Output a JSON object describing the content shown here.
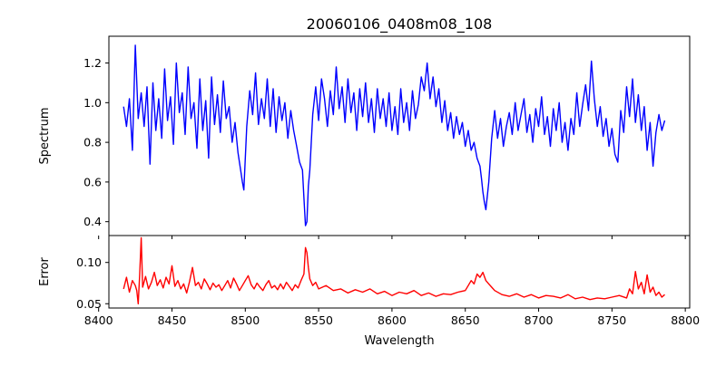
{
  "chart_data": [
    {
      "type": "line",
      "title": "20060106_0408m08_108",
      "xlabel": "",
      "ylabel": "Spectrum",
      "xlim": [
        8407,
        8803
      ],
      "ylim": [
        0.33,
        1.335
      ],
      "xticks": [
        8400,
        8450,
        8500,
        8550,
        8600,
        8650,
        8700,
        8750,
        8800
      ],
      "yticks": [
        0.4,
        0.6,
        0.8,
        1.0,
        1.2
      ],
      "ytick_labels": [
        "0.4",
        "0.6",
        "0.8",
        "1.0",
        "1.2"
      ],
      "grid": false,
      "series": [
        {
          "color": "#0000ff",
          "x": [
            8417,
            8419,
            8421,
            8423,
            8425,
            8427,
            8429,
            8431,
            8433,
            8435,
            8437,
            8439,
            8441,
            8443,
            8445,
            8447,
            8449,
            8451,
            8453,
            8455,
            8457,
            8459,
            8461,
            8463,
            8465,
            8467,
            8469,
            8471,
            8473,
            8475,
            8477,
            8479,
            8481,
            8483,
            8485,
            8487,
            8489,
            8491,
            8493,
            8495,
            8497,
            8498,
            8499,
            8501,
            8503,
            8505,
            8507,
            8509,
            8511,
            8513,
            8515,
            8517,
            8519,
            8521,
            8523,
            8525,
            8527,
            8529,
            8531,
            8533,
            8535,
            8537,
            8539,
            8540,
            8541,
            8542,
            8543,
            8544,
            8546,
            8548,
            8550,
            8552,
            8554,
            8556,
            8558,
            8560,
            8562,
            8564,
            8566,
            8568,
            8570,
            8572,
            8574,
            8576,
            8578,
            8580,
            8582,
            8584,
            8586,
            8588,
            8590,
            8592,
            8594,
            8596,
            8598,
            8600,
            8602,
            8604,
            8606,
            8608,
            8610,
            8612,
            8614,
            8616,
            8618,
            8620,
            8622,
            8624,
            8626,
            8628,
            8630,
            8632,
            8634,
            8636,
            8638,
            8640,
            8642,
            8644,
            8646,
            8648,
            8650,
            8652,
            8654,
            8656,
            8658,
            8660,
            8661,
            8662,
            8663,
            8664,
            8666,
            8668,
            8670,
            8672,
            8674,
            8676,
            8678,
            8680,
            8682,
            8684,
            8686,
            8688,
            8690,
            8692,
            8694,
            8696,
            8698,
            8700,
            8702,
            8704,
            8706,
            8708,
            8710,
            8712,
            8714,
            8716,
            8718,
            8720,
            8722,
            8724,
            8726,
            8728,
            8730,
            8732,
            8734,
            8736,
            8738,
            8740,
            8742,
            8744,
            8746,
            8748,
            8750,
            8752,
            8754,
            8756,
            8758,
            8760,
            8762,
            8764,
            8766,
            8768,
            8770,
            8772,
            8774,
            8776,
            8778,
            8780,
            8782,
            8784,
            8786
          ],
          "values": [
            0.98,
            0.88,
            1.02,
            0.76,
            1.29,
            0.92,
            1.05,
            0.88,
            1.08,
            0.69,
            1.1,
            0.86,
            1.02,
            0.82,
            1.17,
            0.91,
            1.03,
            0.79,
            1.2,
            0.95,
            1.05,
            0.84,
            1.18,
            0.92,
            1.0,
            0.77,
            1.12,
            0.86,
            1.01,
            0.72,
            1.13,
            0.89,
            1.04,
            0.85,
            1.11,
            0.92,
            0.98,
            0.8,
            0.9,
            0.75,
            0.65,
            0.6,
            0.56,
            0.88,
            1.06,
            0.94,
            1.15,
            0.89,
            1.02,
            0.92,
            1.12,
            0.88,
            1.07,
            0.85,
            1.03,
            0.91,
            1.0,
            0.82,
            0.96,
            0.86,
            0.78,
            0.7,
            0.66,
            0.52,
            0.38,
            0.4,
            0.58,
            0.66,
            0.94,
            1.08,
            0.91,
            1.12,
            1.02,
            0.88,
            1.06,
            0.94,
            1.18,
            0.97,
            1.08,
            0.9,
            1.12,
            0.95,
            1.05,
            0.86,
            1.07,
            0.93,
            1.1,
            0.9,
            1.02,
            0.85,
            1.07,
            0.92,
            1.02,
            0.88,
            1.05,
            0.86,
            0.98,
            0.84,
            1.07,
            0.9,
            1.0,
            0.86,
            1.06,
            0.92,
            0.99,
            1.13,
            1.06,
            1.2,
            1.02,
            1.13,
            0.98,
            1.07,
            0.9,
            1.01,
            0.86,
            0.95,
            0.82,
            0.93,
            0.84,
            0.9,
            0.78,
            0.86,
            0.76,
            0.8,
            0.72,
            0.68,
            0.62,
            0.55,
            0.5,
            0.46,
            0.6,
            0.82,
            0.96,
            0.82,
            0.92,
            0.78,
            0.88,
            0.95,
            0.84,
            1.0,
            0.86,
            0.94,
            1.02,
            0.85,
            0.94,
            0.8,
            0.97,
            0.88,
            1.03,
            0.84,
            0.93,
            0.78,
            0.97,
            0.86,
            1.0,
            0.8,
            0.9,
            0.76,
            0.92,
            0.84,
            1.05,
            0.88,
            0.99,
            1.09,
            0.96,
            1.21,
            1.02,
            0.88,
            0.98,
            0.83,
            0.92,
            0.78,
            0.87,
            0.74,
            0.7,
            0.96,
            0.85,
            1.08,
            0.93,
            1.12,
            0.9,
            1.04,
            0.86,
            0.98,
            0.76,
            0.9,
            0.68,
            0.85,
            0.94,
            0.86,
            0.91
          ]
        }
      ]
    },
    {
      "type": "line",
      "title": "",
      "xlabel": "Wavelength",
      "ylabel": "Error",
      "xlim": [
        8407,
        8803
      ],
      "ylim": [
        0.0448,
        0.1326
      ],
      "xticks": [
        8400,
        8450,
        8500,
        8550,
        8600,
        8650,
        8700,
        8750,
        8800
      ],
      "xtick_labels": [
        "8400",
        "8450",
        "8500",
        "8550",
        "8600",
        "8650",
        "8700",
        "8750",
        "8800"
      ],
      "yticks": [
        0.05,
        0.1
      ],
      "ytick_labels": [
        "0.05",
        "0.10"
      ],
      "grid": false,
      "series": [
        {
          "color": "#ff0000",
          "x": [
            8417,
            8419,
            8421,
            8423,
            8425,
            8426,
            8427,
            8428,
            8429,
            8430,
            8432,
            8434,
            8436,
            8438,
            8440,
            8442,
            8444,
            8446,
            8448,
            8450,
            8452,
            8454,
            8456,
            8458,
            8460,
            8462,
            8464,
            8466,
            8468,
            8470,
            8472,
            8474,
            8476,
            8478,
            8480,
            8482,
            8484,
            8486,
            8488,
            8490,
            8492,
            8494,
            8496,
            8498,
            8500,
            8502,
            8504,
            8506,
            8508,
            8510,
            8512,
            8514,
            8516,
            8518,
            8520,
            8522,
            8524,
            8526,
            8528,
            8530,
            8532,
            8534,
            8536,
            8538,
            8540,
            8541,
            8542,
            8543,
            8544,
            8546,
            8548,
            8550,
            8555,
            8560,
            8565,
            8570,
            8575,
            8580,
            8585,
            8590,
            8595,
            8600,
            8605,
            8610,
            8615,
            8620,
            8625,
            8630,
            8635,
            8640,
            8645,
            8650,
            8652,
            8654,
            8656,
            8658,
            8660,
            8662,
            8664,
            8666,
            8668,
            8670,
            8675,
            8680,
            8685,
            8690,
            8695,
            8700,
            8705,
            8710,
            8715,
            8720,
            8725,
            8730,
            8735,
            8740,
            8745,
            8750,
            8755,
            8760,
            8762,
            8764,
            8766,
            8768,
            8770,
            8772,
            8774,
            8776,
            8778,
            8780,
            8782,
            8784,
            8786
          ],
          "values": [
            0.068,
            0.082,
            0.064,
            0.078,
            0.072,
            0.066,
            0.05,
            0.085,
            0.13,
            0.07,
            0.083,
            0.068,
            0.076,
            0.088,
            0.072,
            0.079,
            0.069,
            0.082,
            0.074,
            0.096,
            0.071,
            0.078,
            0.068,
            0.074,
            0.063,
            0.077,
            0.094,
            0.072,
            0.076,
            0.068,
            0.08,
            0.074,
            0.067,
            0.075,
            0.07,
            0.073,
            0.066,
            0.072,
            0.078,
            0.069,
            0.081,
            0.074,
            0.066,
            0.072,
            0.078,
            0.084,
            0.073,
            0.068,
            0.075,
            0.07,
            0.066,
            0.073,
            0.078,
            0.069,
            0.072,
            0.067,
            0.074,
            0.068,
            0.076,
            0.071,
            0.066,
            0.073,
            0.069,
            0.078,
            0.086,
            0.118,
            0.112,
            0.094,
            0.08,
            0.072,
            0.076,
            0.068,
            0.072,
            0.066,
            0.068,
            0.063,
            0.067,
            0.064,
            0.068,
            0.062,
            0.065,
            0.06,
            0.064,
            0.062,
            0.066,
            0.06,
            0.063,
            0.059,
            0.062,
            0.061,
            0.064,
            0.066,
            0.072,
            0.078,
            0.074,
            0.086,
            0.082,
            0.088,
            0.078,
            0.074,
            0.07,
            0.066,
            0.061,
            0.059,
            0.062,
            0.058,
            0.061,
            0.057,
            0.06,
            0.059,
            0.057,
            0.061,
            0.056,
            0.058,
            0.055,
            0.057,
            0.056,
            0.058,
            0.06,
            0.057,
            0.068,
            0.062,
            0.089,
            0.068,
            0.076,
            0.062,
            0.085,
            0.064,
            0.07,
            0.06,
            0.064,
            0.058,
            0.061
          ]
        }
      ]
    }
  ]
}
